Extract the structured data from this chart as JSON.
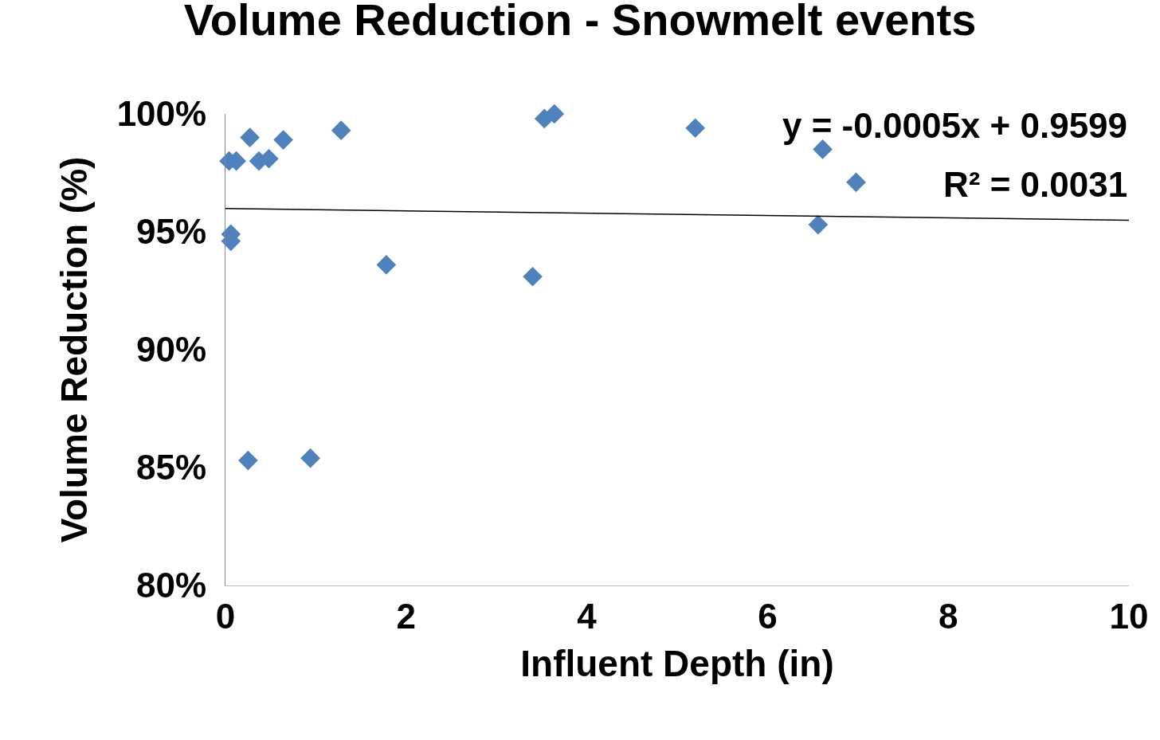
{
  "chart_data": {
    "type": "scatter",
    "title": "Volume Reduction - Snowmelt events",
    "xlabel": "Influent Depth (in)",
    "ylabel": "Volume Reduction (%)",
    "annotations": [
      "y = -0.0005x + 0.9599",
      "R² = 0.0031"
    ],
    "xlim": [
      0,
      10
    ],
    "xticks": [
      0,
      2,
      4,
      6,
      8,
      10
    ],
    "ylim": [
      80,
      100
    ],
    "yticks": [
      {
        "value": 80,
        "label": "80%"
      },
      {
        "value": 85,
        "label": "85%"
      },
      {
        "value": 90,
        "label": "90%"
      },
      {
        "value": 95,
        "label": "95%"
      },
      {
        "value": 100,
        "label": "100%"
      }
    ],
    "grid": false,
    "marker": "diamond",
    "series": [
      {
        "color": "#4f81bd",
        "x": [
          0.04,
          0.12,
          0.06,
          0.06,
          0.27,
          0.25,
          0.37,
          0.48,
          0.64,
          0.94,
          1.28,
          1.78,
          3.4,
          3.53,
          3.64,
          5.2,
          6.61,
          6.98,
          6.56
        ],
        "values": [
          98.0,
          98.0,
          94.9,
          94.6,
          99.0,
          85.3,
          98.0,
          98.1,
          98.9,
          85.4,
          99.3,
          93.6,
          93.1,
          99.8,
          100.0,
          99.4,
          98.5,
          97.1,
          95.3
        ]
      },
      {
        "type": "line",
        "color": "#000000",
        "marker": "none",
        "line_style": "solid",
        "x": [
          0,
          10
        ],
        "values": [
          95.99,
          95.49
        ]
      }
    ]
  }
}
